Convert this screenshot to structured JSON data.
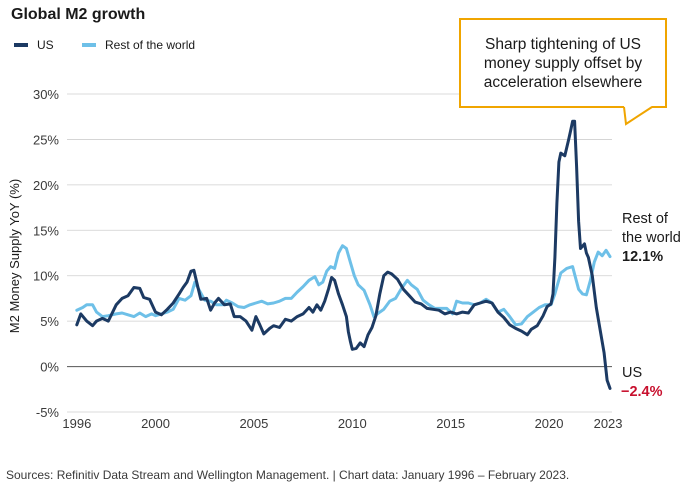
{
  "chart_data": {
    "type": "line",
    "title": "Global M2 growth",
    "ylabel": "M2 Money Supply YoY (%)",
    "xlabel": "",
    "ylim": [
      -5,
      30
    ],
    "xlim": [
      1995.5,
      2023.2
    ],
    "yticks": [
      -5,
      0,
      5,
      10,
      15,
      20,
      25,
      30
    ],
    "ytick_labels": [
      "-5%",
      "0%",
      "5%",
      "10%",
      "15%",
      "20%",
      "25%",
      "30%"
    ],
    "xticks": [
      1996,
      2000,
      2005,
      2010,
      2015,
      2020,
      2023
    ],
    "xtick_labels": [
      "1996",
      "2000",
      "2005",
      "2010",
      "2015",
      "2020",
      "2023"
    ],
    "legend": "top-left",
    "series": [
      {
        "name": "US",
        "color": "#1c3a63",
        "points": [
          [
            1996.0,
            4.6
          ],
          [
            1996.2,
            5.8
          ],
          [
            1996.5,
            5.0
          ],
          [
            1996.8,
            4.5
          ],
          [
            1997.0,
            5.0
          ],
          [
            1997.3,
            5.3
          ],
          [
            1997.6,
            5.0
          ],
          [
            1998.0,
            6.8
          ],
          [
            1998.3,
            7.5
          ],
          [
            1998.6,
            7.8
          ],
          [
            1998.9,
            8.7
          ],
          [
            1999.2,
            8.6
          ],
          [
            1999.4,
            7.6
          ],
          [
            1999.7,
            7.4
          ],
          [
            2000.0,
            6.0
          ],
          [
            2000.3,
            5.7
          ],
          [
            2000.6,
            6.3
          ],
          [
            2000.9,
            7.0
          ],
          [
            2001.2,
            8.0
          ],
          [
            2001.4,
            8.7
          ],
          [
            2001.6,
            9.3
          ],
          [
            2001.8,
            10.5
          ],
          [
            2001.95,
            10.6
          ],
          [
            2002.1,
            9.2
          ],
          [
            2002.3,
            7.4
          ],
          [
            2002.6,
            7.5
          ],
          [
            2002.8,
            6.2
          ],
          [
            2003.0,
            7.0
          ],
          [
            2003.2,
            7.5
          ],
          [
            2003.5,
            6.8
          ],
          [
            2003.8,
            6.9
          ],
          [
            2004.0,
            5.5
          ],
          [
            2004.3,
            5.5
          ],
          [
            2004.6,
            5.0
          ],
          [
            2004.9,
            4.0
          ],
          [
            2005.1,
            5.5
          ],
          [
            2005.3,
            4.6
          ],
          [
            2005.5,
            3.6
          ],
          [
            2005.8,
            4.2
          ],
          [
            2006.0,
            4.5
          ],
          [
            2006.3,
            4.3
          ],
          [
            2006.6,
            5.2
          ],
          [
            2006.9,
            5.0
          ],
          [
            2007.2,
            5.5
          ],
          [
            2007.5,
            5.8
          ],
          [
            2007.8,
            6.5
          ],
          [
            2008.0,
            6.0
          ],
          [
            2008.2,
            6.8
          ],
          [
            2008.4,
            6.2
          ],
          [
            2008.6,
            7.2
          ],
          [
            2008.8,
            8.6
          ],
          [
            2008.95,
            9.8
          ],
          [
            2009.1,
            9.5
          ],
          [
            2009.3,
            8.0
          ],
          [
            2009.5,
            6.8
          ],
          [
            2009.7,
            5.5
          ],
          [
            2009.8,
            3.8
          ],
          [
            2009.9,
            2.8
          ],
          [
            2010.0,
            1.9
          ],
          [
            2010.2,
            2.0
          ],
          [
            2010.4,
            2.6
          ],
          [
            2010.6,
            2.2
          ],
          [
            2010.8,
            3.5
          ],
          [
            2011.0,
            4.3
          ],
          [
            2011.2,
            5.6
          ],
          [
            2011.4,
            8.0
          ],
          [
            2011.6,
            10.0
          ],
          [
            2011.8,
            10.4
          ],
          [
            2012.0,
            10.2
          ],
          [
            2012.3,
            9.6
          ],
          [
            2012.6,
            8.5
          ],
          [
            2012.9,
            7.8
          ],
          [
            2013.2,
            7.1
          ],
          [
            2013.5,
            6.9
          ],
          [
            2013.8,
            6.4
          ],
          [
            2014.1,
            6.3
          ],
          [
            2014.4,
            6.2
          ],
          [
            2014.7,
            5.8
          ],
          [
            2015.0,
            6.0
          ],
          [
            2015.3,
            5.8
          ],
          [
            2015.6,
            6.0
          ],
          [
            2015.9,
            5.9
          ],
          [
            2016.2,
            6.8
          ],
          [
            2016.5,
            7.0
          ],
          [
            2016.8,
            7.2
          ],
          [
            2017.1,
            7.0
          ],
          [
            2017.4,
            6.0
          ],
          [
            2017.7,
            5.4
          ],
          [
            2018.0,
            4.6
          ],
          [
            2018.3,
            4.2
          ],
          [
            2018.6,
            3.9
          ],
          [
            2018.9,
            3.5
          ],
          [
            2019.1,
            4.1
          ],
          [
            2019.4,
            4.5
          ],
          [
            2019.7,
            5.6
          ],
          [
            2019.9,
            6.6
          ],
          [
            2020.1,
            6.9
          ],
          [
            2020.2,
            8.0
          ],
          [
            2020.3,
            12.0
          ],
          [
            2020.4,
            18.0
          ],
          [
            2020.5,
            22.5
          ],
          [
            2020.6,
            23.5
          ],
          [
            2020.8,
            23.2
          ],
          [
            2021.0,
            25.0
          ],
          [
            2021.1,
            26.0
          ],
          [
            2021.2,
            27.0
          ],
          [
            2021.3,
            27.0
          ],
          [
            2021.4,
            22.0
          ],
          [
            2021.5,
            16.0
          ],
          [
            2021.6,
            13.0
          ],
          [
            2021.8,
            13.5
          ],
          [
            2021.9,
            12.5
          ],
          [
            2022.0,
            12.0
          ],
          [
            2022.2,
            10.0
          ],
          [
            2022.4,
            6.5
          ],
          [
            2022.6,
            4.0
          ],
          [
            2022.8,
            1.5
          ],
          [
            2022.95,
            -1.5
          ],
          [
            2023.1,
            -2.4
          ]
        ]
      },
      {
        "name": "Rest of the world",
        "color": "#6ec0e8",
        "points": [
          [
            1996.0,
            6.2
          ],
          [
            1996.3,
            6.5
          ],
          [
            1996.5,
            6.8
          ],
          [
            1996.8,
            6.8
          ],
          [
            1997.0,
            6.0
          ],
          [
            1997.3,
            5.5
          ],
          [
            1997.6,
            5.6
          ],
          [
            1998.0,
            5.8
          ],
          [
            1998.3,
            5.9
          ],
          [
            1998.6,
            5.7
          ],
          [
            1998.9,
            5.5
          ],
          [
            1999.2,
            5.9
          ],
          [
            1999.5,
            5.5
          ],
          [
            1999.8,
            5.8
          ],
          [
            2000.0,
            5.6
          ],
          [
            2000.3,
            5.8
          ],
          [
            2000.6,
            6.0
          ],
          [
            2000.9,
            6.3
          ],
          [
            2001.2,
            7.5
          ],
          [
            2001.5,
            7.3
          ],
          [
            2001.8,
            7.8
          ],
          [
            2002.0,
            9.3
          ],
          [
            2002.2,
            8.5
          ],
          [
            2002.5,
            7.3
          ],
          [
            2002.8,
            7.2
          ],
          [
            2003.1,
            6.8
          ],
          [
            2003.4,
            6.8
          ],
          [
            2003.6,
            7.3
          ],
          [
            2003.9,
            7.0
          ],
          [
            2004.2,
            6.6
          ],
          [
            2004.5,
            6.5
          ],
          [
            2004.8,
            6.8
          ],
          [
            2005.1,
            7.0
          ],
          [
            2005.4,
            7.2
          ],
          [
            2005.7,
            6.9
          ],
          [
            2006.0,
            7.0
          ],
          [
            2006.3,
            7.2
          ],
          [
            2006.6,
            7.5
          ],
          [
            2006.9,
            7.5
          ],
          [
            2007.2,
            8.2
          ],
          [
            2007.5,
            8.8
          ],
          [
            2007.8,
            9.5
          ],
          [
            2008.1,
            9.9
          ],
          [
            2008.3,
            9.0
          ],
          [
            2008.5,
            9.3
          ],
          [
            2008.7,
            10.5
          ],
          [
            2008.9,
            11.0
          ],
          [
            2009.1,
            10.8
          ],
          [
            2009.3,
            12.5
          ],
          [
            2009.5,
            13.3
          ],
          [
            2009.7,
            13.0
          ],
          [
            2009.9,
            11.5
          ],
          [
            2010.1,
            10.0
          ],
          [
            2010.3,
            9.0
          ],
          [
            2010.6,
            8.4
          ],
          [
            2010.9,
            6.8
          ],
          [
            2011.1,
            5.5
          ],
          [
            2011.4,
            6.0
          ],
          [
            2011.6,
            6.3
          ],
          [
            2011.9,
            7.2
          ],
          [
            2012.2,
            7.5
          ],
          [
            2012.5,
            8.6
          ],
          [
            2012.8,
            9.5
          ],
          [
            2013.0,
            9.0
          ],
          [
            2013.3,
            8.5
          ],
          [
            2013.6,
            7.3
          ],
          [
            2013.9,
            6.8
          ],
          [
            2014.2,
            6.4
          ],
          [
            2014.5,
            6.4
          ],
          [
            2014.8,
            6.4
          ],
          [
            2015.1,
            5.8
          ],
          [
            2015.3,
            7.2
          ],
          [
            2015.6,
            7.0
          ],
          [
            2015.9,
            7.0
          ],
          [
            2016.2,
            6.8
          ],
          [
            2016.5,
            7.0
          ],
          [
            2016.8,
            7.4
          ],
          [
            2017.1,
            7.0
          ],
          [
            2017.4,
            6.0
          ],
          [
            2017.7,
            6.3
          ],
          [
            2018.0,
            5.5
          ],
          [
            2018.3,
            4.6
          ],
          [
            2018.6,
            4.7
          ],
          [
            2018.9,
            5.5
          ],
          [
            2019.2,
            6.0
          ],
          [
            2019.5,
            6.5
          ],
          [
            2019.8,
            6.8
          ],
          [
            2020.1,
            6.8
          ],
          [
            2020.3,
            8.0
          ],
          [
            2020.6,
            10.3
          ],
          [
            2020.9,
            10.8
          ],
          [
            2021.2,
            11.0
          ],
          [
            2021.5,
            8.5
          ],
          [
            2021.7,
            8.0
          ],
          [
            2021.9,
            7.9
          ],
          [
            2022.1,
            9.5
          ],
          [
            2022.3,
            11.5
          ],
          [
            2022.5,
            12.6
          ],
          [
            2022.7,
            12.2
          ],
          [
            2022.9,
            12.8
          ],
          [
            2023.1,
            12.1
          ]
        ]
      }
    ],
    "annotations": {
      "callout": "Sharp tightening of US money supply offset by acceleration elsewhere",
      "row_label_line1": "Rest of",
      "row_label_line2": "the world",
      "row_value": "12.1%",
      "us_label": "US",
      "us_value": "−2.4%",
      "us_value_color": "#c8102e"
    }
  },
  "source": "Sources: Refinitiv Data Stream and Wellington Management.  |  Chart data: January 1996 – February 2023."
}
